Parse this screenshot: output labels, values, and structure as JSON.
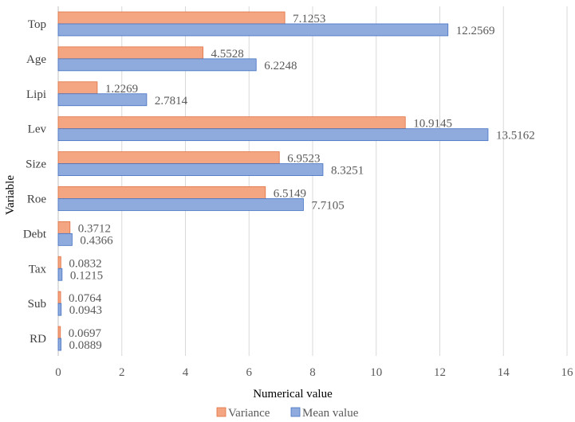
{
  "chart_data": {
    "type": "bar",
    "orientation": "horizontal",
    "categories": [
      "Top",
      "Age",
      "Lipi",
      "Lev",
      "Size",
      "Roe",
      "Debt",
      "Tax",
      "Sub",
      "RD"
    ],
    "series": [
      {
        "name": "Variance",
        "color": "#F4A582",
        "stroke": "#E07040",
        "values": [
          7.1253,
          4.5528,
          1.2269,
          10.9145,
          6.9523,
          6.5149,
          0.3712,
          0.0832,
          0.0764,
          0.0697
        ],
        "labels": [
          "7.1253",
          "4.5528",
          "1.2269",
          "10.9145",
          "6.9523",
          "6.5149",
          "0.3712",
          "0.0832",
          "0.0764",
          "0.0697"
        ]
      },
      {
        "name": "Mean value",
        "color": "#8FAADC",
        "stroke": "#4472C4",
        "values": [
          12.2569,
          6.2248,
          2.7814,
          13.5162,
          8.3251,
          7.7105,
          0.4366,
          0.1215,
          0.0943,
          0.0889
        ],
        "labels": [
          "12.2569",
          "6.2248",
          "2.7814",
          "13.5162",
          "8.3251",
          "7.7105",
          "0.4366",
          "0.1215",
          "0.0943",
          "0.0889"
        ]
      }
    ],
    "xlabel": "Numerical value",
    "ylabel": "Variable",
    "xlim": [
      0,
      16
    ],
    "xticks": [
      "0",
      "2",
      "4",
      "6",
      "8",
      "10",
      "12",
      "14",
      "16"
    ],
    "grid": "vertical",
    "legend_position": "bottom"
  }
}
